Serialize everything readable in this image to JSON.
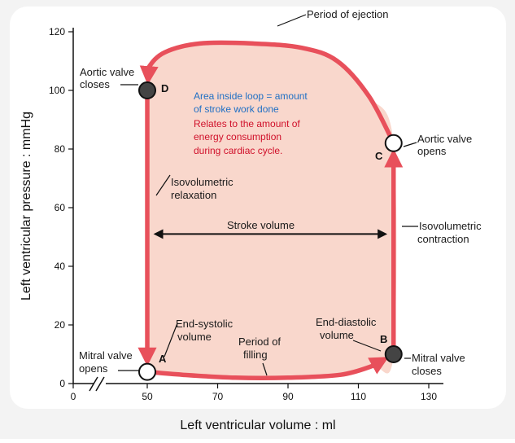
{
  "chart_data": {
    "type": "line",
    "xlabel": "Left ventricular volume : ml",
    "ylabel": "Left ventricular pressure : mmHg",
    "xlim": [
      0,
      130
    ],
    "ylim": [
      0,
      120
    ],
    "x_ticks": [
      "0",
      "50",
      "70",
      "90",
      "110",
      "130"
    ],
    "x_tick_values": [
      0,
      50,
      70,
      90,
      110,
      130
    ],
    "y_ticks": [
      "0",
      "20",
      "40",
      "60",
      "80",
      "100",
      "120"
    ],
    "y_tick_values": [
      0,
      20,
      40,
      60,
      80,
      100,
      120
    ],
    "axis_break": true,
    "loop": {
      "color": "#e8505b",
      "fill": "#f9d7cc",
      "points": {
        "A": {
          "label": "A",
          "x": 50,
          "y": 4
        },
        "B": {
          "label": "B",
          "x": 120,
          "y": 10
        },
        "C": {
          "label": "C",
          "x": 120,
          "y": 82
        },
        "D": {
          "label": "D",
          "x": 50,
          "y": 100
        }
      },
      "segments": {
        "filling": [
          [
            50,
            4
          ],
          [
            60,
            3
          ],
          [
            75,
            2
          ],
          [
            90,
            2
          ],
          [
            105,
            3
          ],
          [
            114,
            6
          ],
          [
            120,
            10
          ]
        ],
        "contraction": [
          [
            120,
            10
          ],
          [
            120,
            82
          ]
        ],
        "ejection": [
          [
            120,
            82
          ],
          [
            113,
            98
          ],
          [
            104,
            110
          ],
          [
            94,
            114.5
          ],
          [
            80,
            116
          ],
          [
            65,
            116
          ],
          [
            55,
            113
          ],
          [
            50.5,
            108
          ],
          [
            50,
            100
          ]
        ],
        "relaxation": [
          [
            50,
            100
          ],
          [
            50,
            4
          ]
        ]
      }
    },
    "stroke_volume": {
      "label": "Stroke volume",
      "from": 50,
      "to": 120,
      "y": 51
    }
  },
  "annotations": {
    "period_of_ejection": "Period of ejection",
    "aortic_valve_closes_1": "Aortic valve",
    "aortic_valve_closes_2": "closes",
    "aortic_valve_opens_1": "Aortic valve",
    "aortic_valve_opens_2": "opens",
    "iso_relax_1": "Isovolumetric",
    "iso_relax_2": "relaxation",
    "iso_contr_1": "Isovolumetric",
    "iso_contr_2": "contraction",
    "end_systolic_1": "End-systolic",
    "end_systolic_2": "volume",
    "end_diastolic_1": "End-diastolic",
    "end_diastolic_2": "volume",
    "period_of_filling_1": "Period of",
    "period_of_filling_2": "filling",
    "mitral_opens_1": "Mitral valve",
    "mitral_opens_2": "opens",
    "mitral_closes_1": "Mitral valve",
    "mitral_closes_2": "closes"
  },
  "note": {
    "line1": "Area inside loop = amount",
    "line2": "of stroke work done",
    "line3": "Relates to the amount of",
    "line4": "energy consumption",
    "line5": "during cardiac cycle.",
    "color_blue": "#1f6fc4",
    "color_red": "#d0102a"
  }
}
